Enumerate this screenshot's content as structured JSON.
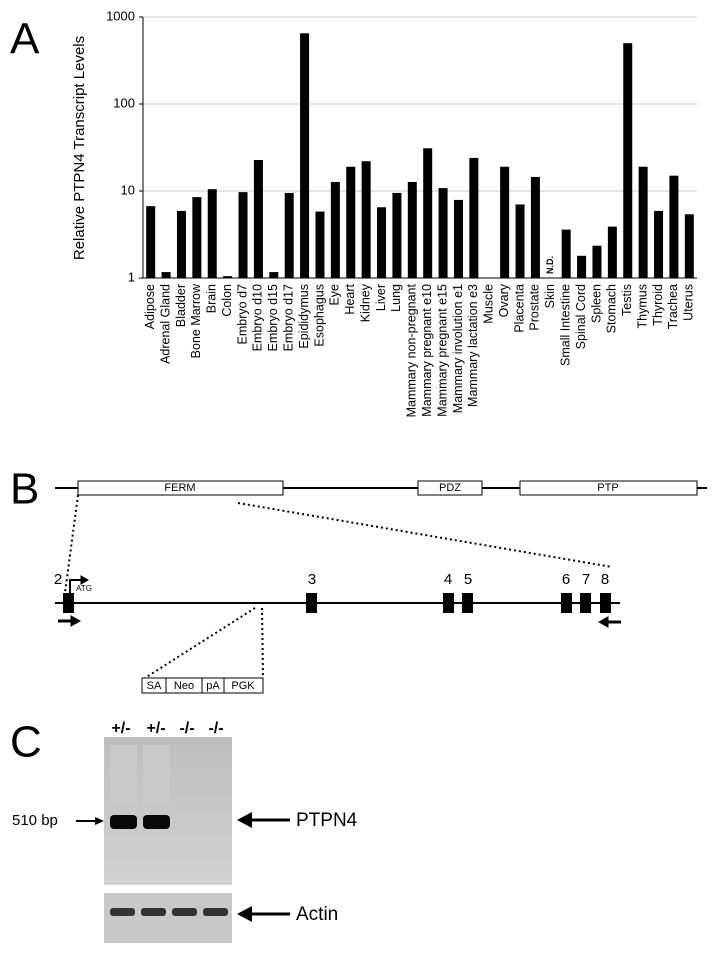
{
  "chart_data": {
    "type": "bar",
    "ylabel": "Relative PTPN4 Transcript Levels",
    "categories": [
      "Adipose",
      "Adrenal Gland",
      "Bladder",
      "Bone Marrow",
      "Brain",
      "Colon",
      "Embryo d7",
      "Embryo d10",
      "Embryo d15",
      "Embryo d17",
      "Epididymus",
      "Esophagus",
      "Eye",
      "Heart",
      "Kidney",
      "Liver",
      "Lung",
      "Mammary non-pregnant",
      "Mammary pregnant e10",
      "Mammary pregnant e15",
      "Mammary involution e1",
      "Mammary lactation e3",
      "Muscle",
      "Ovary",
      "Placenta",
      "Prostate",
      "Skin",
      "Small Intestine",
      "Spinal Cord",
      "Spleen",
      "Stomach",
      "Testis",
      "Thymus",
      "Thyroid",
      "Trachea",
      "Uterus"
    ],
    "values": [
      6.7,
      1.17,
      5.9,
      8.5,
      10.5,
      1.05,
      9.7,
      22.7,
      1.17,
      9.5,
      650,
      5.8,
      12.7,
      19,
      22,
      6.5,
      9.5,
      12.7,
      31,
      10.8,
      7.9,
      24,
      null,
      19,
      7.0,
      14.5,
      null,
      3.6,
      1.8,
      2.35,
      3.9,
      500,
      19,
      5.9,
      15,
      5.4
    ],
    "color": "#000000",
    "ylim": [
      1,
      1000
    ],
    "yticks": [
      1,
      10,
      100,
      1000
    ],
    "log_scale": true,
    "grid": true,
    "annotations": [
      {
        "text": "N.D.",
        "x": "Skin"
      }
    ]
  },
  "panel_labels": [
    "A",
    "B",
    "C"
  ],
  "diagram": {
    "domains": [
      "FERM",
      "PDZ",
      "PTP"
    ],
    "exons": [
      "2",
      "3",
      "4",
      "5",
      "6",
      "7",
      "8"
    ],
    "start_codon": "ATG",
    "cassette": [
      "SA",
      "Neo",
      "pA",
      "PGK"
    ]
  },
  "gel": {
    "lanes": [
      "+/-",
      "+/-",
      "-/-",
      "-/-"
    ],
    "size_marker": "510 bp",
    "bands": [
      "PTPN4",
      "Actin"
    ]
  }
}
